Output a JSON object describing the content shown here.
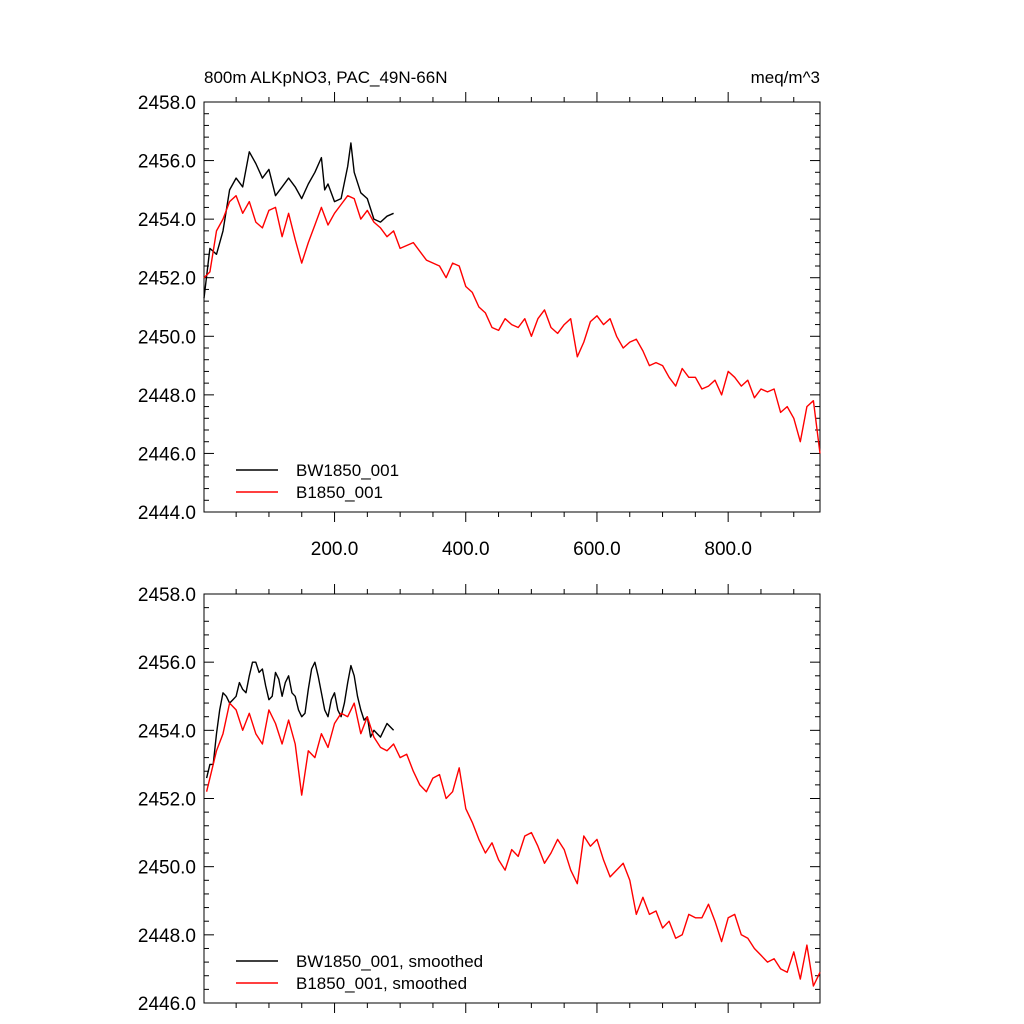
{
  "figure": {
    "title_left": "800m ALKpNO3, PAC_49N-66N",
    "title_right": "meq/m^3"
  },
  "colors": {
    "BW1850_001": "#000000",
    "B1850_001": "#ff0000"
  },
  "chart_data": [
    {
      "type": "line",
      "title": "800m ALKpNO3, PAC_49N-66N",
      "units": "meq/m^3",
      "xlabel": "",
      "ylabel": "",
      "xlim": [
        1,
        940
      ],
      "ylim": [
        2444,
        2458
      ],
      "xticks": [
        200,
        400,
        600,
        800
      ],
      "xtick_labels": [
        "200.0",
        "400.0",
        "600.0",
        "800.0"
      ],
      "yticks": [
        2444,
        2446,
        2448,
        2450,
        2452,
        2454,
        2456,
        2458
      ],
      "ytick_labels": [
        "2444.0",
        "2446.0",
        "2448.0",
        "2450.0",
        "2452.0",
        "2454.0",
        "2456.0",
        "2458.0"
      ],
      "legend": {
        "position": "bottom-left",
        "entries": [
          "BW1850_001",
          "B1850_001"
        ]
      },
      "series": [
        {
          "name": "BW1850_001",
          "color": "#000000",
          "x": [
            1,
            10,
            20,
            30,
            40,
            50,
            60,
            70,
            80,
            90,
            100,
            110,
            120,
            130,
            140,
            150,
            160,
            170,
            180,
            185,
            190,
            200,
            210,
            220,
            225,
            230,
            240,
            250,
            260,
            270,
            280,
            290
          ],
          "y": [
            2451.3,
            2453.0,
            2452.8,
            2453.6,
            2455.0,
            2455.4,
            2455.1,
            2456.3,
            2455.9,
            2455.4,
            2455.7,
            2454.8,
            2455.1,
            2455.4,
            2455.1,
            2454.7,
            2455.2,
            2455.6,
            2456.1,
            2455.0,
            2455.2,
            2454.6,
            2454.7,
            2455.8,
            2456.6,
            2455.6,
            2454.9,
            2454.7,
            2454.0,
            2453.9,
            2454.1,
            2454.2
          ]
        },
        {
          "name": "B1850_001",
          "color": "#ff0000",
          "x": [
            1,
            10,
            20,
            30,
            40,
            50,
            60,
            70,
            80,
            90,
            100,
            110,
            120,
            130,
            140,
            150,
            160,
            170,
            180,
            190,
            200,
            210,
            220,
            230,
            240,
            250,
            260,
            270,
            280,
            290,
            300,
            320,
            340,
            360,
            370,
            380,
            390,
            400,
            410,
            420,
            430,
            440,
            450,
            460,
            470,
            480,
            490,
            500,
            510,
            520,
            530,
            540,
            550,
            560,
            570,
            580,
            590,
            600,
            610,
            620,
            630,
            640,
            650,
            660,
            670,
            680,
            690,
            700,
            710,
            720,
            730,
            740,
            750,
            760,
            770,
            780,
            790,
            800,
            810,
            820,
            830,
            840,
            850,
            860,
            870,
            880,
            890,
            900,
            910,
            920,
            930,
            940
          ],
          "y": [
            2452.0,
            2452.2,
            2453.6,
            2454.0,
            2454.6,
            2454.8,
            2454.2,
            2454.6,
            2453.9,
            2453.7,
            2454.3,
            2454.4,
            2453.4,
            2454.2,
            2453.3,
            2452.5,
            2453.2,
            2453.8,
            2454.4,
            2453.8,
            2454.2,
            2454.5,
            2454.8,
            2454.7,
            2454.0,
            2454.3,
            2453.9,
            2453.7,
            2453.4,
            2453.6,
            2453.0,
            2453.2,
            2452.6,
            2452.4,
            2452.0,
            2452.5,
            2452.4,
            2451.7,
            2451.5,
            2451.0,
            2450.8,
            2450.3,
            2450.2,
            2450.6,
            2450.4,
            2450.3,
            2450.6,
            2450.0,
            2450.6,
            2450.9,
            2450.3,
            2450.1,
            2450.4,
            2450.6,
            2449.3,
            2449.8,
            2450.5,
            2450.7,
            2450.4,
            2450.6,
            2450.0,
            2449.6,
            2449.8,
            2449.9,
            2449.5,
            2449.0,
            2449.1,
            2449.0,
            2448.6,
            2448.3,
            2448.9,
            2448.6,
            2448.6,
            2448.2,
            2448.3,
            2448.5,
            2448.0,
            2448.8,
            2448.6,
            2448.3,
            2448.5,
            2447.9,
            2448.2,
            2448.1,
            2448.2,
            2447.4,
            2447.6,
            2447.2,
            2446.4,
            2447.6,
            2447.8,
            2446.0
          ]
        }
      ]
    },
    {
      "type": "line",
      "title": "",
      "xlabel": "",
      "ylabel": "",
      "xlim": [
        1,
        940
      ],
      "ylim": [
        2446,
        2458
      ],
      "xticks": [
        200,
        400,
        600,
        800
      ],
      "xtick_labels": [],
      "yticks": [
        2446,
        2448,
        2450,
        2452,
        2454,
        2456,
        2458
      ],
      "ytick_labels": [
        "2446.0",
        "2448.0",
        "2450.0",
        "2452.0",
        "2454.0",
        "2456.0",
        "2458.0"
      ],
      "legend": {
        "position": "bottom-left",
        "entries": [
          "BW1850_001, smoothed",
          "B1850_001, smoothed"
        ]
      },
      "series": [
        {
          "name": "BW1850_001, smoothed",
          "color": "#000000",
          "x": [
            5,
            10,
            15,
            20,
            25,
            30,
            35,
            40,
            45,
            50,
            55,
            60,
            65,
            70,
            75,
            80,
            85,
            90,
            95,
            100,
            105,
            110,
            115,
            120,
            125,
            130,
            135,
            140,
            145,
            150,
            155,
            160,
            165,
            170,
            175,
            180,
            185,
            190,
            195,
            200,
            205,
            210,
            215,
            220,
            225,
            230,
            235,
            240,
            245,
            250,
            255,
            260,
            265,
            270,
            275,
            280,
            285,
            290
          ],
          "y": [
            2452.6,
            2453.0,
            2453.0,
            2453.9,
            2454.6,
            2455.1,
            2455.0,
            2454.8,
            2454.9,
            2455.0,
            2455.4,
            2455.2,
            2455.1,
            2455.6,
            2456.0,
            2456.0,
            2455.7,
            2455.8,
            2455.3,
            2454.9,
            2455.0,
            2455.7,
            2455.5,
            2455.0,
            2455.4,
            2455.6,
            2455.1,
            2455.0,
            2454.6,
            2454.4,
            2454.5,
            2455.2,
            2455.8,
            2456.0,
            2455.6,
            2455.1,
            2454.6,
            2454.4,
            2454.9,
            2455.1,
            2454.6,
            2454.4,
            2454.8,
            2455.4,
            2455.9,
            2455.6,
            2455.0,
            2454.6,
            2454.3,
            2454.4,
            2453.8,
            2454.0,
            2453.9,
            2453.8,
            2454.0,
            2454.2,
            2454.1,
            2454.0
          ]
        },
        {
          "name": "B1850_001, smoothed",
          "color": "#ff0000",
          "x": [
            5,
            10,
            20,
            30,
            40,
            50,
            60,
            70,
            80,
            90,
            100,
            110,
            120,
            130,
            140,
            150,
            160,
            170,
            180,
            190,
            200,
            210,
            220,
            230,
            240,
            250,
            260,
            270,
            280,
            290,
            300,
            310,
            320,
            330,
            340,
            350,
            360,
            370,
            380,
            390,
            400,
            410,
            420,
            430,
            440,
            450,
            460,
            470,
            480,
            490,
            500,
            510,
            520,
            530,
            540,
            550,
            560,
            570,
            580,
            590,
            600,
            610,
            620,
            630,
            640,
            650,
            660,
            670,
            680,
            690,
            700,
            710,
            720,
            730,
            740,
            750,
            760,
            770,
            780,
            790,
            800,
            810,
            820,
            830,
            840,
            850,
            860,
            870,
            880,
            890,
            900,
            910,
            920,
            930,
            940
          ],
          "y": [
            2452.2,
            2452.6,
            2453.4,
            2453.9,
            2454.8,
            2454.6,
            2454.0,
            2454.5,
            2453.9,
            2453.6,
            2454.6,
            2454.2,
            2453.6,
            2454.3,
            2453.6,
            2452.1,
            2453.4,
            2453.2,
            2453.9,
            2453.5,
            2454.2,
            2454.5,
            2454.4,
            2454.8,
            2453.9,
            2454.4,
            2453.8,
            2453.5,
            2453.4,
            2453.6,
            2453.2,
            2453.3,
            2452.8,
            2452.4,
            2452.2,
            2452.6,
            2452.7,
            2452.0,
            2452.2,
            2452.9,
            2451.7,
            2451.3,
            2450.8,
            2450.4,
            2450.7,
            2450.2,
            2449.9,
            2450.5,
            2450.3,
            2450.9,
            2451.0,
            2450.6,
            2450.1,
            2450.4,
            2450.8,
            2450.5,
            2449.9,
            2449.5,
            2450.9,
            2450.6,
            2450.8,
            2450.2,
            2449.7,
            2449.9,
            2450.1,
            2449.6,
            2448.6,
            2449.1,
            2448.6,
            2448.7,
            2448.2,
            2448.4,
            2447.9,
            2448.0,
            2448.6,
            2448.5,
            2448.5,
            2448.9,
            2448.4,
            2447.8,
            2448.5,
            2448.6,
            2448.0,
            2447.9,
            2447.6,
            2447.4,
            2447.2,
            2447.3,
            2447.0,
            2446.9,
            2447.5,
            2446.7,
            2447.7,
            2446.5,
            2446.9
          ]
        }
      ]
    }
  ]
}
